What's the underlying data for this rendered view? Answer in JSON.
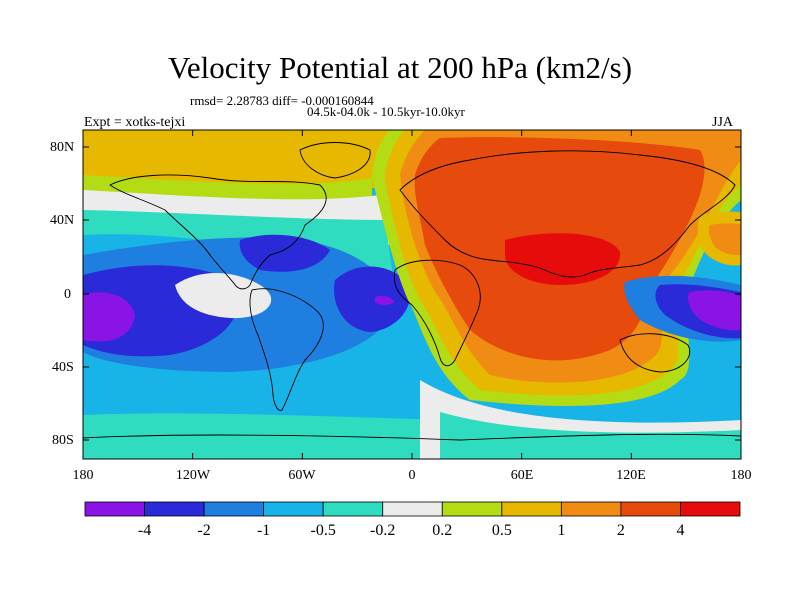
{
  "title": "Velocity Potential at 200 hPa (km2/s)",
  "stats_text": "rmsd= 2.28783 diff= -0.000160844",
  "period_text": "04.5k-04.0k - 10.5kyr-10.0kyr",
  "experiment_text": "Expt = xotks-tejxi",
  "season": "JJA",
  "lat_labels": [
    "80N",
    "40N",
    "0",
    "40S",
    "80S"
  ],
  "lon_labels": [
    "180",
    "120W",
    "60W",
    "0",
    "60E",
    "120E",
    "180"
  ],
  "colorbar": {
    "labels": [
      "-4",
      "-2",
      "-1",
      "-0.5",
      "-0.2",
      "0.2",
      "0.5",
      "1",
      "2",
      "4"
    ],
    "colors": [
      "#8a14e6",
      "#2a2ad8",
      "#1f7fe0",
      "#18b4e8",
      "#30dcc0",
      "#ececec",
      "#b4dc14",
      "#e6b800",
      "#f08c14",
      "#e64a0c",
      "#e60c0c"
    ]
  },
  "colors": {
    "neg4": "#8a14e6",
    "neg2": "#2a2ad8",
    "neg1": "#1f7fe0",
    "neg05": "#18b4e8",
    "neg02": "#30dcc0",
    "zero": "#ececec",
    "pos02": "#b4dc14",
    "pos05": "#e6b800",
    "pos1": "#f08c14",
    "pos2": "#e64a0c",
    "pos4": "#e60c0c"
  }
}
